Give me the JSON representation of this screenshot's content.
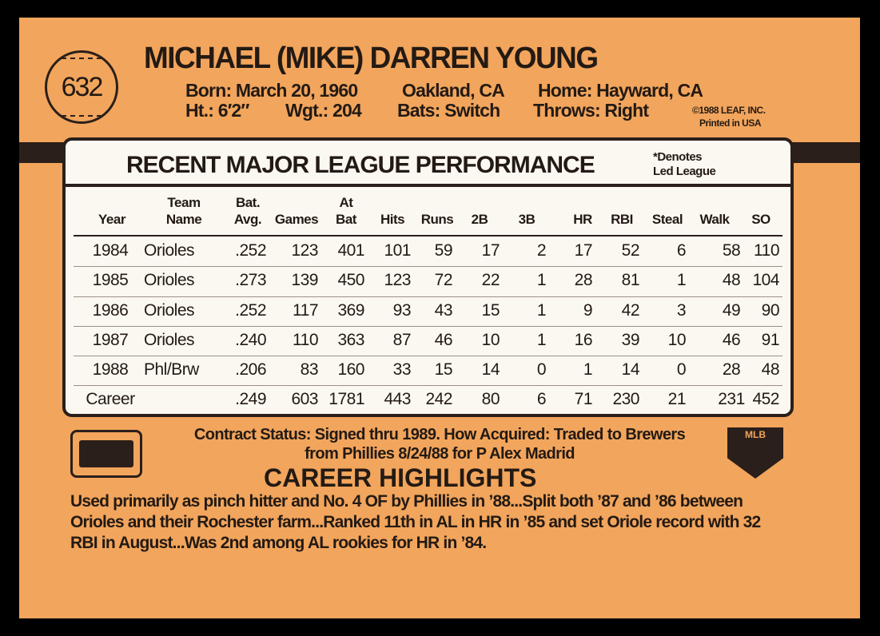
{
  "card_number": "632",
  "player_name": "MICHAEL (MIKE) DARREN YOUNG",
  "bio": {
    "born": "Born: March 20, 1960",
    "birthplace": "Oakland, CA",
    "home": "Home: Hayward, CA",
    "height": "Ht.: 6′2″",
    "weight": "Wgt.: 204",
    "bats": "Bats: Switch",
    "throws": "Throws: Right"
  },
  "copyright": "©1988 LEAF, INC.",
  "printed": "Printed in USA",
  "stats": {
    "title": "RECENT MAJOR LEAGUE PERFORMANCE",
    "note_line1": "*Denotes",
    "note_line2": "Led League",
    "headers": [
      "Year",
      "Team\nName",
      "Bat.\nAvg.",
      "Games",
      "At\nBat",
      "Hits",
      "Runs",
      "2B",
      "3B",
      "HR",
      "RBI",
      "Steal",
      "Walk",
      "SO"
    ],
    "rows": [
      [
        "1984",
        "Orioles",
        ".252",
        "123",
        "401",
        "101",
        "59",
        "17",
        "2",
        "17",
        "52",
        "6",
        "58",
        "110"
      ],
      [
        "1985",
        "Orioles",
        ".273",
        "139",
        "450",
        "123",
        "72",
        "22",
        "1",
        "28",
        "81",
        "1",
        "48",
        "104"
      ],
      [
        "1986",
        "Orioles",
        ".252",
        "117",
        "369",
        "93",
        "43",
        "15",
        "1",
        "9",
        "42",
        "3",
        "49",
        "90"
      ],
      [
        "1987",
        "Orioles",
        ".240",
        "110",
        "363",
        "87",
        "46",
        "10",
        "1",
        "16",
        "39",
        "10",
        "46",
        "91"
      ],
      [
        "1988",
        "Phl/Brw",
        ".206",
        "83",
        "160",
        "33",
        "15",
        "14",
        "0",
        "1",
        "14",
        "0",
        "28",
        "48"
      ],
      [
        "Career",
        "",
        ".249",
        "603",
        "1781",
        "443",
        "242",
        "80",
        "6",
        "71",
        "230",
        "21",
        "231",
        "452"
      ]
    ]
  },
  "contract": {
    "line1": "Contract Status: Signed thru 1989. How Acquired: Traded to Brewers",
    "line2": "from Phillies 8/24/88 for P Alex Madrid"
  },
  "highlights": {
    "title": "CAREER HIGHLIGHTS",
    "text": "Used primarily as pinch hitter and No. 4 OF by Phillies in ’88...Split both ’87 and ’86 between Orioles and their Rochester farm...Ranked 11th in AL in HR in ’85 and set Oriole record with 32 RBI in August...Was 2nd among AL rookies for HR in ’84."
  },
  "logos": {
    "mlb": "MLB"
  },
  "colors": {
    "card": "#f2a55c",
    "ink": "#2a1f1a",
    "box": "#fbf8f1"
  }
}
